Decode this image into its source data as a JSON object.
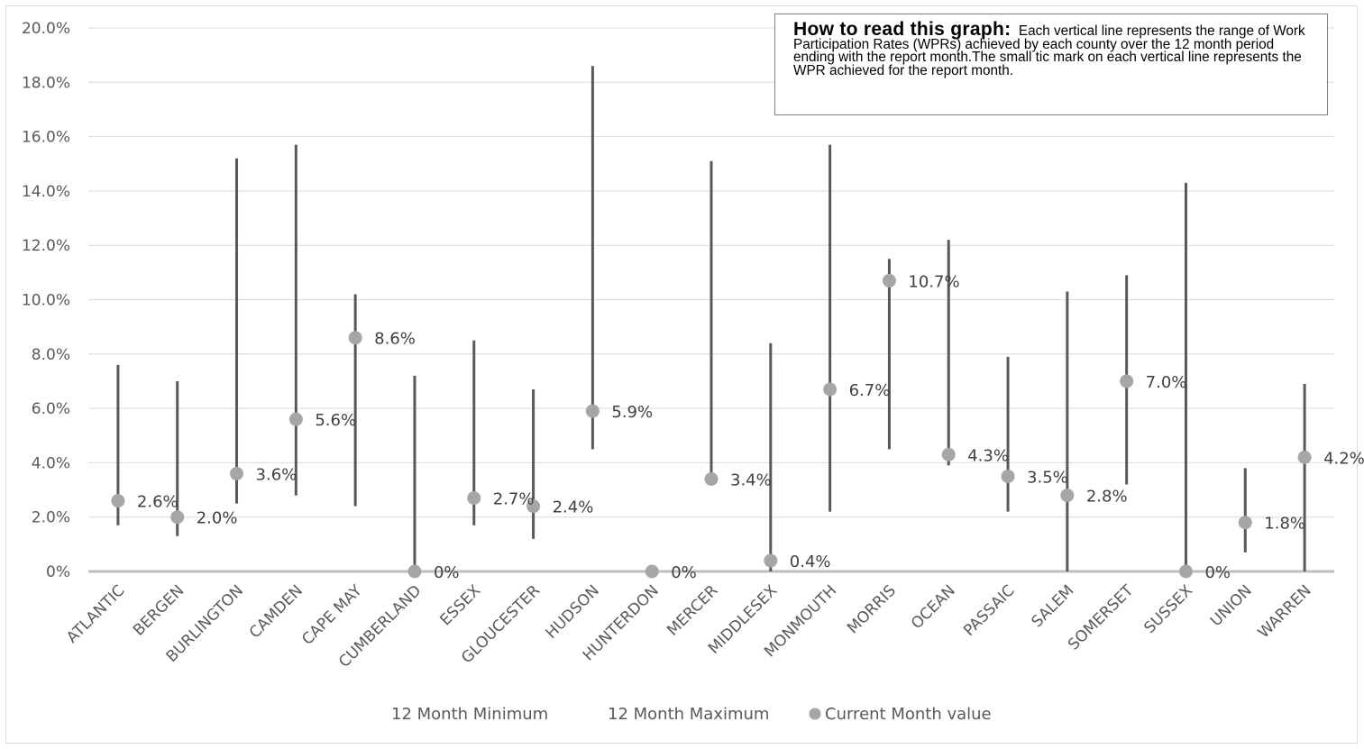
{
  "note": {
    "title": "How to read this graph:",
    "body": "Each vertical line represents the range of Work Participation Rates (WPRs) achieved by each county over the 12 month period ending with the report month.The small tic mark on each vertical line represents the WPR achieved for the report month."
  },
  "chart_data": {
    "type": "range",
    "ylim": [
      0,
      20
    ],
    "yticks": [
      "0%",
      "2.0%",
      "4.0%",
      "6.0%",
      "8.0%",
      "10.0%",
      "12.0%",
      "14.0%",
      "16.0%",
      "18.0%",
      "20.0%"
    ],
    "grid": true,
    "legend_position": "bottom",
    "legend": [
      "12 Month Minimum",
      "12 Month Maximum",
      "Current Month value"
    ],
    "colors": {
      "range_line": "#595959",
      "marker": "#a6a6a6",
      "grid": "#d9d9d9",
      "axis": "#bfbfbf"
    },
    "categories": [
      "ATLANTIC",
      "BERGEN",
      "BURLINGTON",
      "CAMDEN",
      "CAPE MAY",
      "CUMBERLAND",
      "ESSEX",
      "GLOUCESTER",
      "HUDSON",
      "HUNTERDON",
      "MERCER",
      "MIDDLESEX",
      "MONMOUTH",
      "MORRIS",
      "OCEAN",
      "PASSAIC",
      "SALEM",
      "SOMERSET",
      "SUSSEX",
      "UNION",
      "WARREN"
    ],
    "min": [
      1.7,
      1.3,
      2.5,
      2.8,
      2.4,
      0,
      1.7,
      1.2,
      4.5,
      0,
      3.4,
      0,
      2.2,
      4.5,
      3.9,
      2.2,
      0,
      3.2,
      0,
      0.7,
      0
    ],
    "max": [
      7.6,
      7.0,
      15.2,
      15.7,
      10.2,
      7.2,
      8.5,
      6.7,
      18.6,
      0,
      15.1,
      8.4,
      15.7,
      11.5,
      12.2,
      7.9,
      10.3,
      10.9,
      14.3,
      3.8,
      6.9
    ],
    "current": [
      2.6,
      2.0,
      3.6,
      5.6,
      8.6,
      0,
      2.7,
      2.4,
      5.9,
      0,
      3.4,
      0.4,
      6.7,
      10.7,
      4.3,
      3.5,
      2.8,
      7.0,
      0,
      1.8,
      4.2
    ],
    "current_labels": [
      "2.6%",
      "2.0%",
      "3.6%",
      "5.6%",
      "8.6%",
      "0%",
      "2.7%",
      "2.4%",
      "5.9%",
      "0%",
      "3.4%",
      "0.4%",
      "6.7%",
      "10.7%",
      "4.3%",
      "3.5%",
      "2.8%",
      "7.0%",
      "0%",
      "1.8%",
      "4.2%"
    ]
  }
}
